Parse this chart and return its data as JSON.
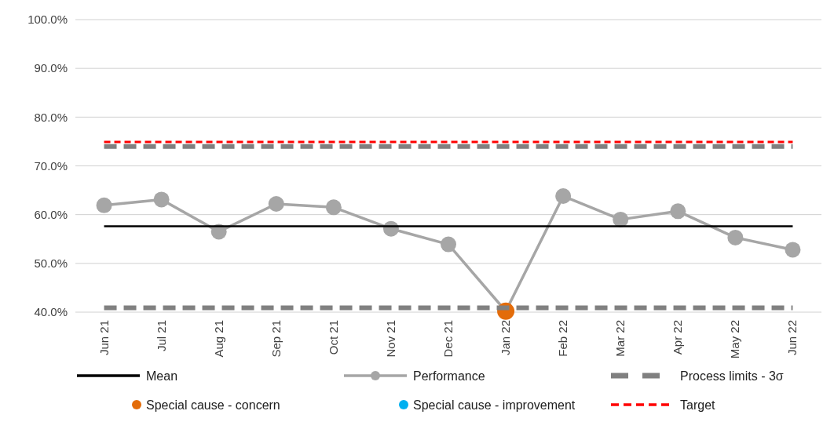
{
  "chart_data": {
    "type": "line",
    "categories": [
      "Jun 21",
      "Jul 21",
      "Aug 21",
      "Sep 21",
      "Oct 21",
      "Nov 21",
      "Dec 21",
      "Jan 22",
      "Feb 22",
      "Mar 22",
      "Apr 22",
      "May 22",
      "Jun 22"
    ],
    "series": [
      {
        "name": "Mean",
        "color": "#000000",
        "line_style": "solid",
        "marker": "none",
        "values": [
          57.6,
          57.6,
          57.6,
          57.6,
          57.6,
          57.6,
          57.6,
          57.6,
          57.6,
          57.6,
          57.6,
          57.6,
          57.6
        ]
      },
      {
        "name": "Performance",
        "color": "#a6a6a6",
        "line_style": "solid",
        "marker": "circle",
        "values": [
          61.9,
          63.1,
          56.5,
          62.2,
          61.5,
          57.1,
          53.9,
          40.2,
          63.8,
          59.0,
          60.7,
          55.3,
          52.8
        ]
      },
      {
        "name": "Process limits - 3σ",
        "color": "#808080",
        "line_style": "dashed",
        "marker": "none",
        "values": [
          74.0,
          74.0,
          74.0,
          74.0,
          74.0,
          74.0,
          74.0,
          74.0,
          74.0,
          74.0,
          74.0,
          74.0,
          74.0
        ]
      },
      {
        "color": "#808080",
        "line_style": "dashed",
        "marker": "none",
        "values": [
          40.9,
          40.9,
          40.9,
          40.9,
          40.9,
          40.9,
          40.9,
          40.9,
          40.9,
          40.9,
          40.9,
          40.9,
          40.9
        ]
      },
      {
        "name": "Special cause - concern",
        "type": "scatter",
        "color": "#e36c0a",
        "marker": "circle",
        "values": [
          null,
          null,
          null,
          null,
          null,
          null,
          null,
          40.2,
          null,
          null,
          null,
          null,
          null
        ]
      },
      {
        "name": "Special cause  - improvement",
        "type": "scatter",
        "color": "#00b0f0",
        "marker": "circle",
        "values": [
          null,
          null,
          null,
          null,
          null,
          null,
          null,
          null,
          null,
          null,
          null,
          null,
          null
        ]
      },
      {
        "name": "Target",
        "color": "#ff0000",
        "line_style": "dotted",
        "marker": "none",
        "values": [
          74.9,
          74.9,
          74.9,
          74.9,
          74.9,
          74.9,
          74.9,
          74.9,
          74.9,
          74.9,
          74.9,
          74.9,
          74.9
        ]
      }
    ],
    "ylim": [
      40,
      100
    ],
    "yticks": [
      {
        "value": 40,
        "label": "40.0%"
      },
      {
        "value": 50,
        "label": "50.0%"
      },
      {
        "value": 60,
        "label": "60.0%"
      },
      {
        "value": 70,
        "label": "70.0%"
      },
      {
        "value": 80,
        "label": "80.0%"
      },
      {
        "value": 90,
        "label": "90.0%"
      },
      {
        "value": 100,
        "label": "100.0%"
      }
    ],
    "grid": "y",
    "legend": "bottom"
  }
}
